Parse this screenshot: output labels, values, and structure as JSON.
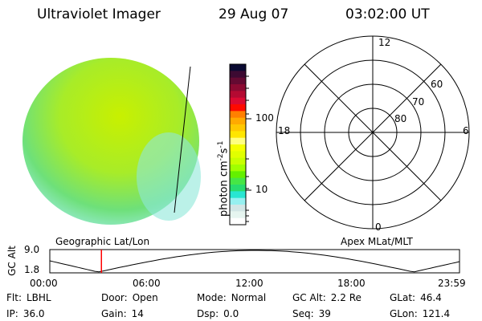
{
  "header": {
    "instrument": "Ultraviolet Imager",
    "date": "29 Aug 07",
    "time": "03:02:00 UT"
  },
  "colorbar": {
    "label": "photon cm",
    "exp1": "-2",
    "s": "s",
    "exp2": "-1",
    "ticks": [
      "100",
      "10"
    ],
    "colors": [
      "#0a0a32",
      "#3c0a32",
      "#640a32",
      "#8c0a32",
      "#b40a32",
      "#dc0a32",
      "#ff0a00",
      "#ff8000",
      "#ffaa00",
      "#ffc800",
      "#ffe600",
      "#ffff80",
      "#f5ff00",
      "#e1ff00",
      "#c8ff00",
      "#a0ff00",
      "#64f000",
      "#46e646",
      "#28dc6e",
      "#28e6d2",
      "#96f0f0",
      "#d2e6e6",
      "#e6f5f0",
      "#ffffff"
    ]
  },
  "polar": {
    "labels_mlt": [
      "12",
      "18",
      "6",
      "0"
    ],
    "labels_mlat": [
      "60",
      "70",
      "80"
    ]
  },
  "altplot": {
    "left_title": "Geographic Lat/Lon",
    "right_title": "Apex MLat/MLT",
    "ylabel": "GC Alt",
    "yticks": [
      "9.0",
      "1.8"
    ],
    "xticks": [
      "00:00",
      "06:00",
      "12:00",
      "18:00",
      "23:59"
    ],
    "marker_time_fraction": 0.126,
    "marker_color": "#ff0000"
  },
  "info": [
    [
      {
        "k": "Flt:",
        "v": "LBHL"
      },
      {
        "k": "Door:",
        "v": "Open"
      },
      {
        "k": "Mode:",
        "v": "Normal"
      },
      {
        "k": "GC Alt:",
        "v": "2.2 Re"
      },
      {
        "k": "GLat:",
        "v": "46.4"
      }
    ],
    [
      {
        "k": "IP:",
        "v": "36.0"
      },
      {
        "k": "Gain:",
        "v": "14"
      },
      {
        "k": "Dsp:",
        "v": "0.0"
      },
      {
        "k": "Seq:",
        "v": "39"
      },
      {
        "k": "GLon:",
        "v": "121.4"
      }
    ]
  ]
}
